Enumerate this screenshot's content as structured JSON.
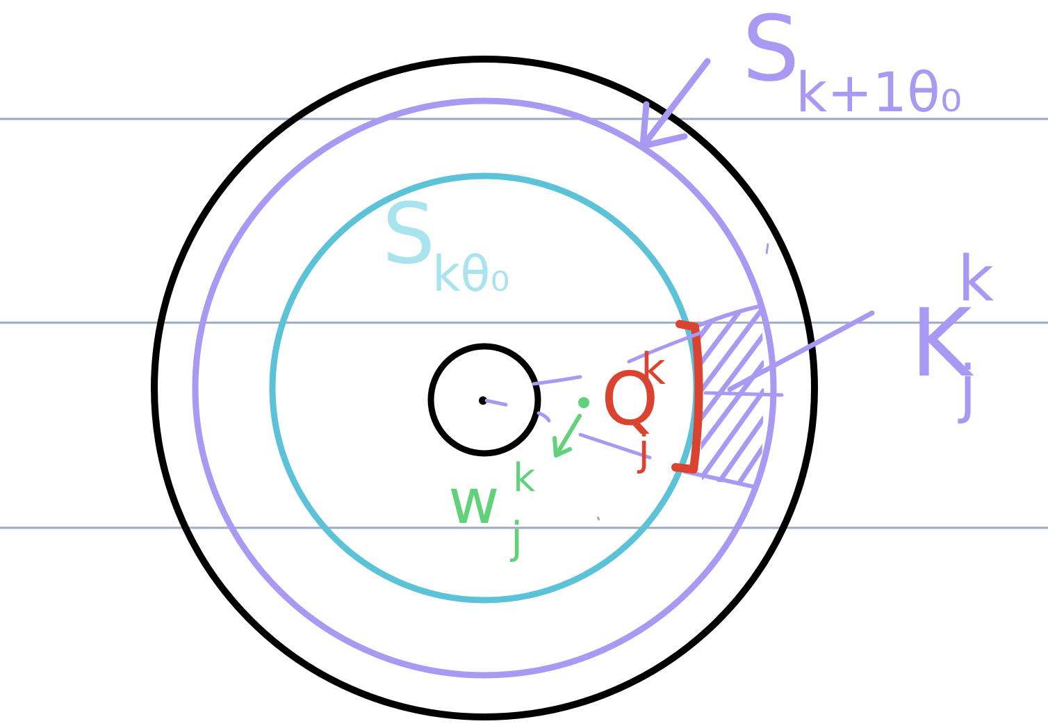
{
  "labels": {
    "outer_shell": {
      "main": "S",
      "sub": "k+1θ₀"
    },
    "inner_shell": {
      "main": "S",
      "sub": "kθ₀"
    },
    "q_label": {
      "main": "Q",
      "sup": "k",
      "sub": "j"
    },
    "w_label": {
      "main": "w",
      "sup": "k",
      "sub": "j"
    },
    "k_label": {
      "main": "K",
      "sup": "k",
      "sub": "j"
    }
  },
  "colors": {
    "ruled_lines": "#9aa9c4",
    "outer_circle": "#000000",
    "purple": "#a999f2",
    "teal": "#5bc2d8",
    "teal_light": "#a9e3ee",
    "red": "#d9432f",
    "green": "#62d27a"
  }
}
